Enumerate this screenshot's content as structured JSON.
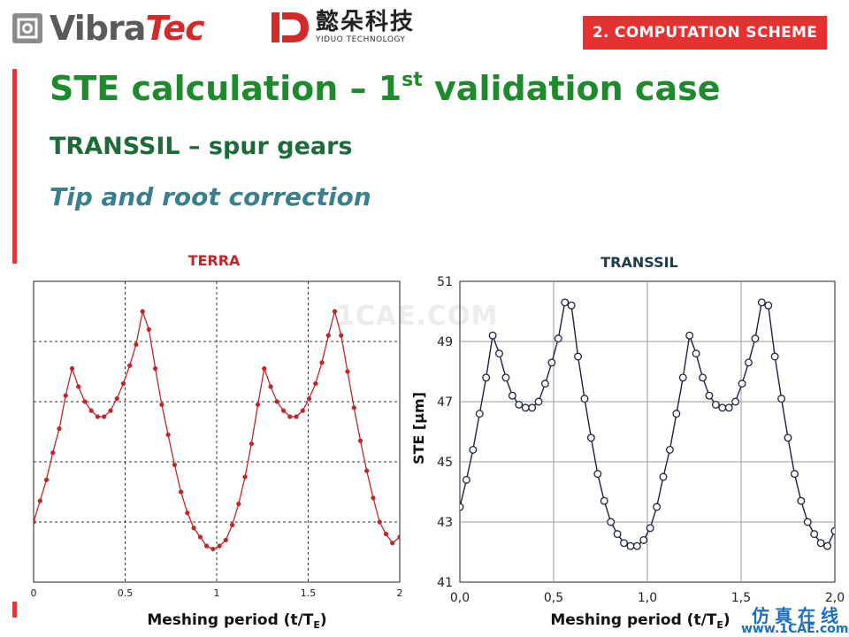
{
  "header": {
    "logo_left": {
      "part1": "Vibra",
      "part2": "Tec"
    },
    "logo_right": {
      "cn": "懿朵科技",
      "en": "YIDUO TECHNOLOGY"
    },
    "section_badge": "2. COMPUTATION SCHEME"
  },
  "slide": {
    "title_main": "STE calculation – 1",
    "title_sup": "st",
    "title_end": " validation case",
    "subtitle": "TRANSSIL – spur gears",
    "subtitle2": "Tip and root correction"
  },
  "watermarks": {
    "center": "1CAE.COM",
    "cn": "仿真在线",
    "url": "www.1CAE.com"
  },
  "colors": {
    "accent": "#e53131",
    "title_green": "#1d8a2b",
    "terra_line": "#c0262c",
    "transsil_line": "#1c2340"
  },
  "chart_data": [
    {
      "type": "line",
      "title": "TERRA",
      "xlabel": "Meshing period (t/T",
      "xlabel_sub": "E",
      "xlabel_end": ")",
      "ylabel": "",
      "xlim": [
        0,
        2
      ],
      "ylim": [
        41,
        51
      ],
      "xticks": [
        0,
        0.5,
        1,
        1.5,
        2
      ],
      "xtick_labels": [
        "0",
        "0.5",
        "1",
        "1.5",
        "2"
      ],
      "grid": "dashed",
      "x": [
        0.0,
        0.035,
        0.07,
        0.105,
        0.14,
        0.175,
        0.21,
        0.245,
        0.28,
        0.315,
        0.35,
        0.385,
        0.42,
        0.455,
        0.49,
        0.525,
        0.56,
        0.595,
        0.63,
        0.665,
        0.7,
        0.735,
        0.77,
        0.805,
        0.84,
        0.875,
        0.91,
        0.945,
        0.98,
        1.015,
        1.05,
        1.085,
        1.12,
        1.155,
        1.19,
        1.225,
        1.26,
        1.295,
        1.33,
        1.365,
        1.4,
        1.435,
        1.47,
        1.505,
        1.54,
        1.575,
        1.61,
        1.645,
        1.68,
        1.715,
        1.75,
        1.785,
        1.82,
        1.855,
        1.89,
        1.925,
        1.96,
        2.0
      ],
      "y": [
        43.0,
        43.7,
        44.4,
        45.3,
        46.1,
        47.2,
        48.1,
        47.5,
        47.0,
        46.7,
        46.5,
        46.5,
        46.7,
        47.1,
        47.6,
        48.2,
        48.9,
        50.0,
        49.4,
        48.1,
        46.9,
        45.9,
        44.9,
        44.0,
        43.3,
        42.8,
        42.5,
        42.2,
        42.1,
        42.2,
        42.4,
        42.9,
        43.6,
        44.5,
        45.6,
        46.9,
        48.1,
        47.5,
        47.0,
        46.7,
        46.5,
        46.5,
        46.7,
        47.1,
        47.6,
        48.3,
        49.2,
        50.0,
        49.2,
        48.0,
        46.8,
        45.7,
        44.7,
        43.8,
        43.0,
        42.6,
        42.3,
        42.5
      ]
    },
    {
      "type": "line",
      "title": "TRANSSIL",
      "xlabel": "Meshing period (t/T",
      "xlabel_sub": "E",
      "xlabel_end": ")",
      "ylabel": "STE [μm]",
      "xlim": [
        0,
        2
      ],
      "ylim": [
        41,
        51
      ],
      "xticks": [
        0,
        0.5,
        1.0,
        1.5,
        2.0
      ],
      "xtick_labels": [
        "0,0",
        "0,5",
        "1,0",
        "1,5",
        "2,0"
      ],
      "yticks": [
        41,
        43,
        45,
        47,
        49,
        51
      ],
      "ytick_labels": [
        "41",
        "43",
        "45",
        "47",
        "49",
        "51"
      ],
      "grid": "solid",
      "x": [
        0.0,
        0.035,
        0.07,
        0.105,
        0.14,
        0.175,
        0.21,
        0.245,
        0.28,
        0.315,
        0.35,
        0.385,
        0.42,
        0.455,
        0.49,
        0.525,
        0.56,
        0.595,
        0.63,
        0.665,
        0.7,
        0.735,
        0.77,
        0.805,
        0.84,
        0.875,
        0.91,
        0.945,
        0.98,
        1.015,
        1.05,
        1.085,
        1.12,
        1.155,
        1.19,
        1.225,
        1.26,
        1.295,
        1.33,
        1.365,
        1.4,
        1.435,
        1.47,
        1.505,
        1.54,
        1.575,
        1.61,
        1.645,
        1.68,
        1.715,
        1.75,
        1.785,
        1.82,
        1.855,
        1.89,
        1.925,
        1.96,
        2.0
      ],
      "y": [
        43.5,
        44.4,
        45.4,
        46.6,
        47.8,
        49.2,
        48.6,
        47.8,
        47.2,
        46.9,
        46.8,
        46.8,
        47.0,
        47.6,
        48.3,
        49.1,
        50.3,
        50.2,
        48.5,
        47.1,
        45.8,
        44.6,
        43.7,
        43.0,
        42.6,
        42.3,
        42.2,
        42.2,
        42.4,
        42.8,
        43.5,
        44.5,
        45.4,
        46.6,
        47.8,
        49.2,
        48.6,
        47.8,
        47.2,
        46.9,
        46.8,
        46.8,
        47.0,
        47.6,
        48.3,
        49.1,
        50.3,
        50.2,
        48.5,
        47.1,
        45.8,
        44.6,
        43.7,
        43.0,
        42.6,
        42.3,
        42.2,
        42.7
      ]
    }
  ]
}
